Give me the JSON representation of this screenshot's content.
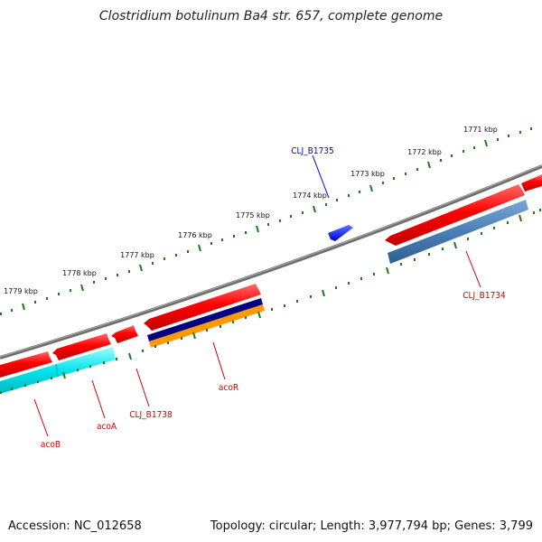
{
  "title": "Clostridium botulinum Ba4 str. 657, complete genome",
  "footer": {
    "accession": "Accession: NC_012658",
    "topology": "Topology: circular; Length: 3,977,794 bp; Genes: 3,799"
  },
  "colors": {
    "backbone": "#808080",
    "ticks": "#1e7a1e",
    "cds": "#ff0000",
    "label_red": "#cc0000",
    "label_blue": "#0000cc",
    "blue_gene": "#0033ff",
    "steelblue": "#4a7fb5",
    "cyan": "#00e5ee",
    "navy": "#000080",
    "orange": "#ff9900"
  },
  "ticks": [
    {
      "label": "1771 kbp"
    },
    {
      "label": "1772 kbp"
    },
    {
      "label": "1773 kbp"
    },
    {
      "label": "1774 kbp"
    },
    {
      "label": "1775 kbp"
    },
    {
      "label": "1776 kbp"
    },
    {
      "label": "1777 kbp"
    },
    {
      "label": "1778 kbp"
    },
    {
      "label": "1779 kbp"
    }
  ],
  "genes": [
    {
      "label": "CLJ_B1735",
      "color": "label_blue"
    },
    {
      "label": "CLJ_B1734",
      "color": "label_red"
    },
    {
      "label": "acoR",
      "color": "label_red"
    },
    {
      "label": "CLJ_B1738",
      "color": "label_red"
    },
    {
      "label": "acoA",
      "color": "label_red"
    },
    {
      "label": "acoB",
      "color": "label_red"
    }
  ]
}
